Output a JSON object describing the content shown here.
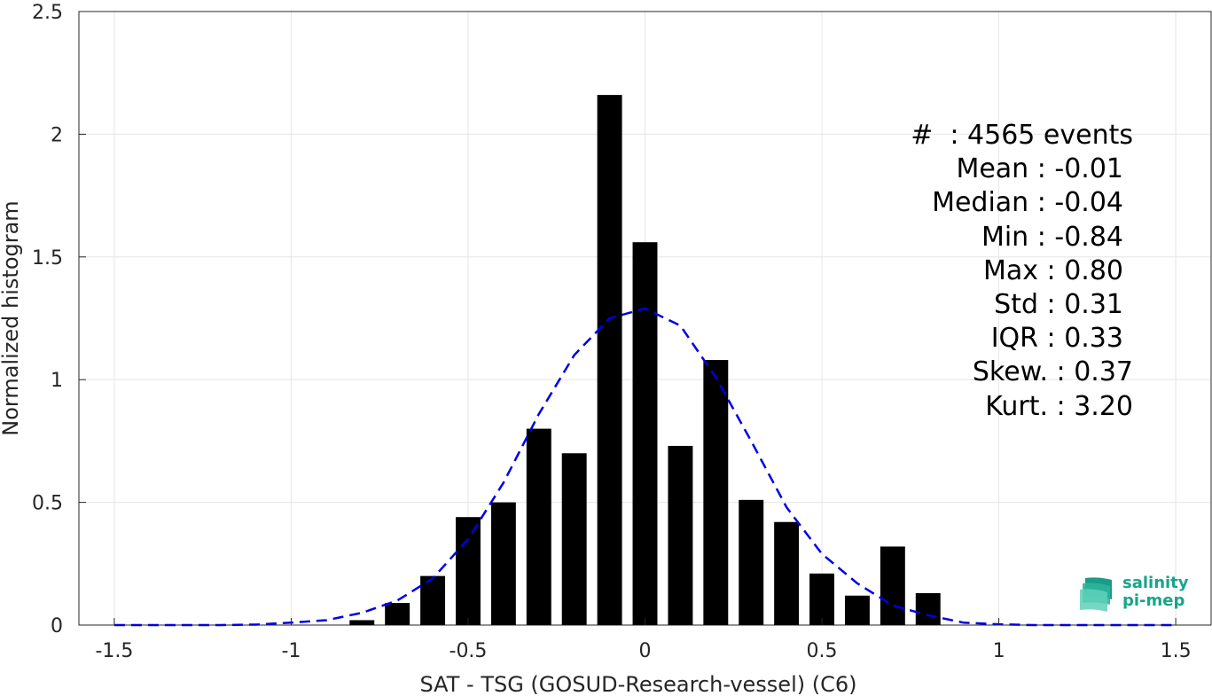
{
  "chart_data": {
    "type": "bar",
    "xlabel": "SAT - TSG (GOSUD-Research-vessel) (C6)",
    "ylabel": "Normalized histogram",
    "xlim": [
      -1.6,
      1.6
    ],
    "ylim": [
      0,
      2.5
    ],
    "xticks": [
      -1.5,
      -1,
      -0.5,
      0,
      0.5,
      1,
      1.5
    ],
    "xtick_labels": [
      "-1.5",
      "-1",
      "-0.5",
      "0",
      "0.5",
      "1",
      "1.5"
    ],
    "yticks": [
      0,
      0.5,
      1,
      1.5,
      2,
      2.5
    ],
    "ytick_labels": [
      "0",
      "0.5",
      "1",
      "1.5",
      "2",
      "2.5"
    ],
    "grid": true,
    "bar_width": 0.07,
    "bars": {
      "centers": [
        -0.8,
        -0.7,
        -0.6,
        -0.5,
        -0.4,
        -0.3,
        -0.2,
        -0.1,
        0.0,
        0.1,
        0.2,
        0.3,
        0.4,
        0.5,
        0.6,
        0.7,
        0.8
      ],
      "values": [
        0.02,
        0.09,
        0.2,
        0.44,
        0.5,
        0.8,
        0.7,
        2.16,
        1.56,
        0.73,
        1.08,
        0.51,
        0.42,
        0.21,
        0.12,
        0.32,
        0.13
      ],
      "color": "#000000"
    },
    "fit_curve": {
      "style": "dashed",
      "color": "#0000e6",
      "x": [
        -1.5,
        -1.4,
        -1.3,
        -1.2,
        -1.1,
        -1.0,
        -0.9,
        -0.8,
        -0.7,
        -0.6,
        -0.5,
        -0.4,
        -0.3,
        -0.2,
        -0.1,
        0.0,
        0.1,
        0.2,
        0.3,
        0.4,
        0.5,
        0.6,
        0.7,
        0.8,
        0.9,
        1.0,
        1.1,
        1.2,
        1.3,
        1.4,
        1.5
      ],
      "y": [
        0,
        0,
        0,
        0,
        0.002,
        0.01,
        0.02,
        0.05,
        0.1,
        0.19,
        0.35,
        0.58,
        0.86,
        1.1,
        1.25,
        1.29,
        1.22,
        1.01,
        0.75,
        0.48,
        0.29,
        0.17,
        0.08,
        0.04,
        0.01,
        0.003,
        0,
        0,
        0,
        0,
        0
      ]
    }
  },
  "stats": {
    "events": "#  : 4565 events",
    "mean": "Mean : -0.01",
    "median": "Median : -0.04",
    "min": "Min : -0.84",
    "max": "Max : 0.80",
    "std": "Std : 0.31",
    "iqr": "IQR : 0.33",
    "skew": "Skew. : 0.37",
    "kurt": "Kurt. : 3.20"
  },
  "logo": {
    "line1": "salinity",
    "line2": "pi-mep",
    "color": "#17a589"
  }
}
